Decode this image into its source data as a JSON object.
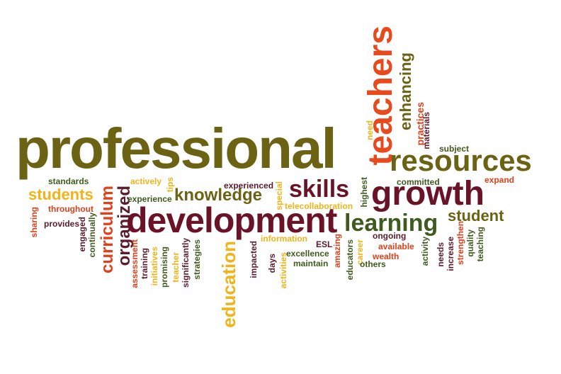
{
  "palette": {
    "olive": "#6b6214",
    "orange": "#e8491d",
    "burgundy": "#6b1326",
    "dark_green": "#3f5a1e",
    "gold": "#f0b419",
    "red_orange": "#e0401a",
    "maroon": "#5c1a2b"
  },
  "words": [
    {
      "text": "professional",
      "color": "#6b6214"
    },
    {
      "text": "development",
      "color": "#6b1326"
    },
    {
      "text": "teachers",
      "color": "#e8491d"
    },
    {
      "text": "resources",
      "color": "#6b6214"
    },
    {
      "text": "growth",
      "color": "#6b1326"
    },
    {
      "text": "learning",
      "color": "#3f5a1e"
    },
    {
      "text": "skills",
      "color": "#6b1326"
    },
    {
      "text": "knowledge",
      "color": "#6b6214"
    },
    {
      "text": "students",
      "color": "#f0b419"
    },
    {
      "text": "curriculum",
      "color": "#e0401a"
    },
    {
      "text": "organized",
      "color": "#5c1a2b"
    },
    {
      "text": "education",
      "color": "#f0b419"
    },
    {
      "text": "enhancing",
      "color": "#6b6214"
    },
    {
      "text": "student",
      "color": "#6b6214"
    },
    {
      "text": "committed",
      "color": "#3f5a1e"
    },
    {
      "text": "practices",
      "color": "#e0401a"
    },
    {
      "text": "materials",
      "color": "#5c1a2b"
    },
    {
      "text": "subject",
      "color": "#3f5a1e"
    },
    {
      "text": "need",
      "color": "#f0b419"
    },
    {
      "text": "expand",
      "color": "#e0401a"
    },
    {
      "text": "standards",
      "color": "#3f5a1e"
    },
    {
      "text": "actively",
      "color": "#f0b419"
    },
    {
      "text": "experienced",
      "color": "#5c1a2b"
    },
    {
      "text": "tips",
      "color": "#f0b419"
    },
    {
      "text": "experience",
      "color": "#3f5a1e"
    },
    {
      "text": "special",
      "color": "#f0b419"
    },
    {
      "text": "telecollaboration",
      "color": "#f0b419"
    },
    {
      "text": "highest",
      "color": "#3f5a1e"
    },
    {
      "text": "throughout",
      "color": "#e0401a"
    },
    {
      "text": "sharing",
      "color": "#e0401a"
    },
    {
      "text": "engaged",
      "color": "#5c1a2b"
    },
    {
      "text": "continually",
      "color": "#3f5a1e"
    },
    {
      "text": "provides",
      "color": "#5c1a2b"
    },
    {
      "text": "assessment",
      "color": "#e0401a"
    },
    {
      "text": "training",
      "color": "#5c1a2b"
    },
    {
      "text": "initiatives",
      "color": "#f0b419"
    },
    {
      "text": "promising",
      "color": "#3f5a1e"
    },
    {
      "text": "teacher",
      "color": "#f0b419"
    },
    {
      "text": "significantly",
      "color": "#5c1a2b"
    },
    {
      "text": "strategies",
      "color": "#3f5a1e"
    },
    {
      "text": "impacted",
      "color": "#5c1a2b"
    },
    {
      "text": "days",
      "color": "#5c1a2b"
    },
    {
      "text": "activities",
      "color": "#f0b419"
    },
    {
      "text": "information",
      "color": "#f0b419"
    },
    {
      "text": "ESL",
      "color": "#5c1a2b"
    },
    {
      "text": "excellence",
      "color": "#3f5a1e"
    },
    {
      "text": "maintain",
      "color": "#3f5a1e"
    },
    {
      "text": "amazing",
      "color": "#e0401a"
    },
    {
      "text": "educators",
      "color": "#3f5a1e"
    },
    {
      "text": "career",
      "color": "#f0b419"
    },
    {
      "text": "ongoing",
      "color": "#5c1a2b"
    },
    {
      "text": "available",
      "color": "#e0401a"
    },
    {
      "text": "wealth",
      "color": "#e0401a"
    },
    {
      "text": "others",
      "color": "#3f5a1e"
    },
    {
      "text": "activity",
      "color": "#3f5a1e"
    },
    {
      "text": "needs",
      "color": "#5c1a2b"
    },
    {
      "text": "increase",
      "color": "#5c1a2b"
    },
    {
      "text": "strengthen",
      "color": "#e0401a"
    },
    {
      "text": "quality",
      "color": "#3f5a1e"
    },
    {
      "text": "teaching",
      "color": "#3f5a1e"
    }
  ]
}
